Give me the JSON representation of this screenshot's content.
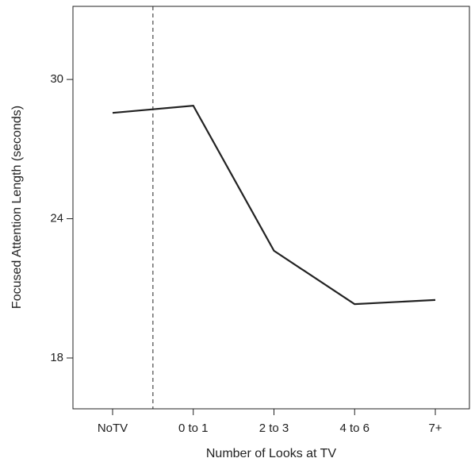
{
  "chart_data": {
    "type": "line",
    "x_label": "Number of Looks at TV",
    "y_label": "Focused Attention Length (seconds)",
    "categories": [
      "NoTV",
      "0 to 1",
      "2 to 3",
      "4 to 6",
      "7+"
    ],
    "values": [
      28.56,
      28.87,
      22.62,
      20.32,
      20.5
    ],
    "color": "#222222",
    "ylim": [
      15.81,
      33.15
    ],
    "yticks": [
      18,
      24,
      30
    ]
  }
}
